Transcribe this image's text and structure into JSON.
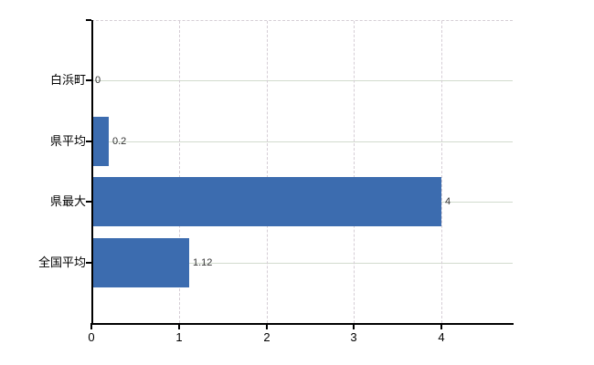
{
  "chart_data": {
    "type": "bar",
    "orientation": "horizontal",
    "title": "",
    "xlabel": "",
    "ylabel": "",
    "categories": [
      "白浜町",
      "県平均",
      "県最大",
      "全国平均"
    ],
    "values": [
      0,
      0.2,
      4,
      1.12
    ],
    "value_labels": [
      "0",
      "0.2",
      "4",
      "1.12"
    ],
    "x_ticks": [
      "0",
      "1",
      "2",
      "3",
      "4"
    ],
    "x_tick_values": [
      0,
      1,
      2,
      3,
      4
    ],
    "xlim": [
      0,
      4.82
    ],
    "legend": null,
    "grid": {
      "vertical_style": "dashed",
      "horizontal_style": "solid"
    },
    "colors": {
      "bar": "#3c6caf",
      "axis": "#000000",
      "vertical_grid": "#d5cdd5",
      "horizontal_grid": "#d2dbce",
      "category_text": "#000000",
      "value_text": "#333333",
      "background": "#ffffff"
    }
  }
}
